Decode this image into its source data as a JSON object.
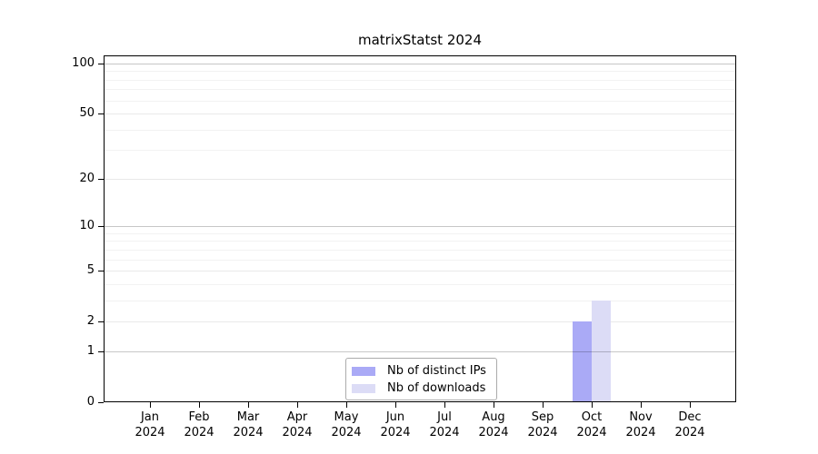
{
  "chart_data": {
    "type": "bar",
    "title": "matrixStatst 2024",
    "categories": [
      "Jan",
      "Feb",
      "Mar",
      "Apr",
      "May",
      "Jun",
      "Jul",
      "Aug",
      "Sep",
      "Oct",
      "Nov",
      "Dec"
    ],
    "x_tick_year": "2024",
    "series": [
      {
        "name": "Nb of distinct IPs",
        "color": "#aaaaf6",
        "values": [
          0,
          0,
          0,
          0,
          0,
          0,
          0,
          0,
          0,
          2,
          0,
          0
        ]
      },
      {
        "name": "Nb of downloads",
        "color": "#dcdcf6",
        "values": [
          0,
          0,
          0,
          0,
          0,
          0,
          0,
          0,
          0,
          3,
          0,
          0
        ]
      }
    ],
    "y_axis": {
      "scale": "log10(1+x)",
      "major_ticks": [
        0,
        1,
        2,
        5,
        10,
        20,
        50,
        100
      ],
      "minor_gridlines": [
        3,
        4,
        6,
        7,
        8,
        9,
        30,
        40,
        60,
        70,
        80,
        90
      ],
      "range": [
        0,
        100
      ]
    },
    "legend": {
      "position": "bottom-center",
      "entries": [
        "Nb of distinct IPs",
        "Nb of downloads"
      ]
    },
    "grid": "horizontal"
  },
  "colors": {
    "background": "#ffffff",
    "axis": "#000000",
    "gridline_decade": "#c7c7c7",
    "gridline_major": "#e9e9e9",
    "gridline_minor": "#f2f2f2",
    "bar_distinct_ips": "#aaaaf6",
    "bar_downloads": "#dcdcf6"
  }
}
